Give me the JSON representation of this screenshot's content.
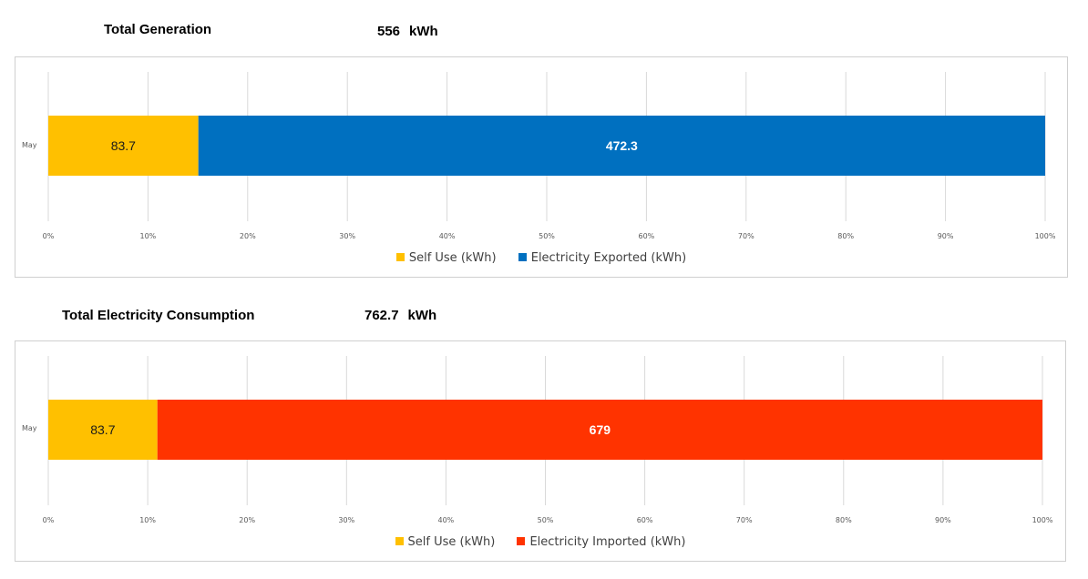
{
  "headers": [
    {
      "title": "Total Generation",
      "value": "556",
      "unit": "kWh"
    },
    {
      "title": "Total Electricity Consumption",
      "value": "762.7",
      "unit": "kWh"
    }
  ],
  "chart_data": [
    {
      "type": "bar",
      "orientation": "horizontal",
      "stacking": "percent",
      "categories": [
        "May"
      ],
      "series": [
        {
          "name": "Self Use (kWh)",
          "values": [
            83.7
          ],
          "color": "#FFC000",
          "label_color": "#1a1a1a",
          "label_bold": false
        },
        {
          "name": "Electricity Exported (kWh)",
          "values": [
            472.3
          ],
          "color": "#0070C0",
          "label_color": "#ffffff",
          "label_bold": true
        }
      ],
      "xticks": [
        "0%",
        "10%",
        "20%",
        "30%",
        "40%",
        "50%",
        "60%",
        "70%",
        "80%",
        "90%",
        "100%"
      ],
      "xlim": [
        0,
        100
      ],
      "grid": true,
      "legend": "bottom"
    },
    {
      "type": "bar",
      "orientation": "horizontal",
      "stacking": "percent",
      "categories": [
        "May"
      ],
      "series": [
        {
          "name": "Self Use (kWh)",
          "values": [
            83.7
          ],
          "color": "#FFC000",
          "label_color": "#1a1a1a",
          "label_bold": false
        },
        {
          "name": "Electricity Imported (kWh)",
          "values": [
            679
          ],
          "color": "#FF3300",
          "label_color": "#ffffff",
          "label_bold": true
        }
      ],
      "xticks": [
        "0%",
        "10%",
        "20%",
        "30%",
        "40%",
        "50%",
        "60%",
        "70%",
        "80%",
        "90%",
        "100%"
      ],
      "xlim": [
        0,
        100
      ],
      "grid": true,
      "legend": "bottom"
    }
  ]
}
